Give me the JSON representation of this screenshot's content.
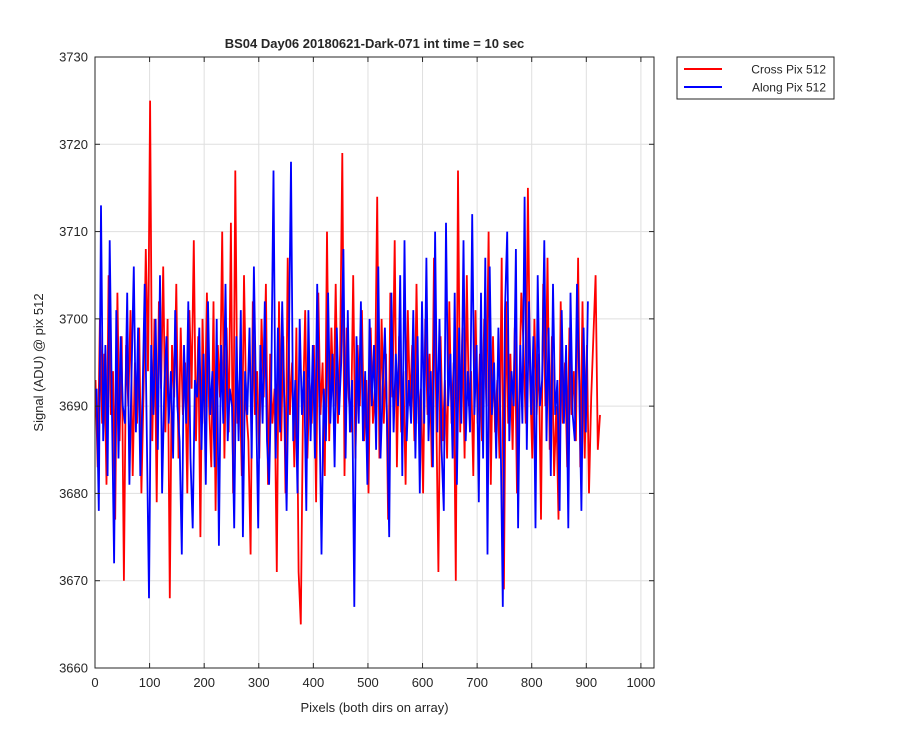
{
  "chart_data": {
    "type": "line",
    "title": "BS04 Day06 20180621-Dark-071 int time = 10 sec",
    "xlabel": "Pixels (both dirs on array)",
    "ylabel": "Signal (ADU) @ pix 512",
    "xlim": [
      0,
      1024
    ],
    "ylim": [
      3660,
      3730
    ],
    "xticks": [
      0,
      100,
      200,
      300,
      400,
      500,
      600,
      700,
      800,
      900,
      1000
    ],
    "yticks": [
      3660,
      3670,
      3680,
      3690,
      3700,
      3710,
      3720,
      3730
    ],
    "grid": true,
    "legend_position": "outside-top-right",
    "series": [
      {
        "name": "Cross Pix 512",
        "color": "#ff0000",
        "x_start": 1,
        "x_step": 4,
        "values": [
          3693,
          3683,
          3700,
          3688,
          3696,
          3681,
          3705,
          3689,
          3694,
          3677,
          3703,
          3686,
          3698,
          3670,
          3697,
          3690,
          3701,
          3682,
          3695,
          3688,
          3699,
          3680,
          3692,
          3708,
          3694,
          3725,
          3686,
          3700,
          3679,
          3702,
          3692,
          3706,
          3687,
          3700,
          3668,
          3697,
          3691,
          3704,
          3684,
          3699,
          3689,
          3695,
          3680,
          3701,
          3692,
          3709,
          3686,
          3698,
          3675,
          3700,
          3688,
          3703,
          3690,
          3683,
          3702,
          3678,
          3697,
          3691,
          3710,
          3684,
          3699,
          3687,
          3711,
          3680,
          3717,
          3688,
          3693,
          3682,
          3705,
          3690,
          3686,
          3673,
          3702,
          3689,
          3694,
          3684,
          3700,
          3691,
          3704,
          3681,
          3696,
          3688,
          3692,
          3671,
          3702,
          3686,
          3698,
          3680,
          3707,
          3689,
          3695,
          3683,
          3699,
          3671,
          3665,
          3690,
          3701,
          3684,
          3693,
          3688,
          3697,
          3679,
          3703,
          3689,
          3695,
          3682,
          3710,
          3686,
          3699,
          3690,
          3704,
          3688,
          3696,
          3719,
          3682,
          3699,
          3691,
          3687,
          3705,
          3684,
          3697,
          3690,
          3701,
          3686,
          3693,
          3680,
          3699,
          3688,
          3692,
          3714,
          3684,
          3700,
          3688,
          3696,
          3677,
          3703,
          3691,
          3709,
          3683,
          3698,
          3687,
          3694,
          3681,
          3701,
          3690,
          3697,
          3686,
          3704,
          3688,
          3692,
          3680,
          3700,
          3689,
          3696,
          3683,
          3707,
          3690,
          3671,
          3698,
          3686,
          3693,
          3684,
          3702,
          3688,
          3695,
          3670,
          3717,
          3687,
          3699,
          3684,
          3705,
          3690,
          3694,
          3682,
          3701,
          3688,
          3696,
          3686,
          3700,
          3690,
          3710,
          3681,
          3698,
          3687,
          3693,
          3684,
          3707,
          3669,
          3702,
          3688,
          3696,
          3685,
          3699,
          3680,
          3691,
          3703,
          3697,
          3688,
          3715,
          3693,
          3684,
          3700,
          3689,
          3696,
          3677,
          3704,
          3690,
          3707,
          3685,
          3698,
          3682,
          3690,
          3677,
          3702,
          3688,
          3695,
          3683,
          3699,
          3689,
          3694,
          3686,
          3707,
          3683,
          3702,
          3684,
          3697,
          3680,
          3691,
          3698,
          3705,
          3685,
          3689
        ]
      },
      {
        "name": "Along Pix 512",
        "color": "#0000ff",
        "x_start": 3,
        "x_step": 4,
        "values": [
          3692,
          3678,
          3713,
          3686,
          3697,
          3682,
          3709,
          3690,
          3672,
          3701,
          3684,
          3698,
          3690,
          3688,
          3703,
          3681,
          3694,
          3706,
          3687,
          3699,
          3682,
          3691,
          3704,
          3686,
          3668,
          3697,
          3689,
          3700,
          3685,
          3705,
          3680,
          3692,
          3698,
          3688,
          3694,
          3684,
          3701,
          3690,
          3686,
          3673,
          3697,
          3688,
          3702,
          3684,
          3676,
          3693,
          3691,
          3699,
          3685,
          3696,
          3681,
          3702,
          3689,
          3694,
          3683,
          3700,
          3674,
          3697,
          3688,
          3704,
          3686,
          3692,
          3690,
          3676,
          3698,
          3686,
          3701,
          3675,
          3694,
          3689,
          3699,
          3684,
          3706,
          3691,
          3676,
          3697,
          3688,
          3702,
          3686,
          3681,
          3693,
          3717,
          3684,
          3699,
          3687,
          3702,
          3690,
          3678,
          3696,
          3718,
          3686,
          3693,
          3680,
          3700,
          3689,
          3694,
          3678,
          3701,
          3686,
          3697,
          3684,
          3704,
          3690,
          3673,
          3692,
          3686,
          3703,
          3688,
          3696,
          3683,
          3699,
          3689,
          3695,
          3708,
          3684,
          3701,
          3687,
          3693,
          3667,
          3698,
          3688,
          3702,
          3686,
          3694,
          3681,
          3700,
          3690,
          3697,
          3685,
          3706,
          3684,
          3692,
          3699,
          3688,
          3675,
          3703,
          3687,
          3696,
          3690,
          3705,
          3682,
          3709,
          3686,
          3693,
          3688,
          3701,
          3684,
          3698,
          3680,
          3702,
          3688,
          3707,
          3686,
          3694,
          3683,
          3710,
          3687,
          3700,
          3685,
          3678,
          3711,
          3690,
          3696,
          3684,
          3703,
          3681,
          3699,
          3688,
          3709,
          3686,
          3694,
          3687,
          3712,
          3689,
          3697,
          3679,
          3703,
          3684,
          3707,
          3673,
          3706,
          3689,
          3695,
          3684,
          3699,
          3687,
          3667,
          3701,
          3710,
          3686,
          3694,
          3690,
          3708,
          3676,
          3697,
          3688,
          3714,
          3685,
          3702,
          3689,
          3698,
          3676,
          3705,
          3690,
          3693,
          3709,
          3686,
          3699,
          3682,
          3704,
          3689,
          3693,
          3678,
          3701,
          3688,
          3697,
          3676,
          3703,
          3689,
          3686,
          3704,
          3693,
          3678,
          3699,
          3687,
          3702
        ]
      }
    ]
  }
}
